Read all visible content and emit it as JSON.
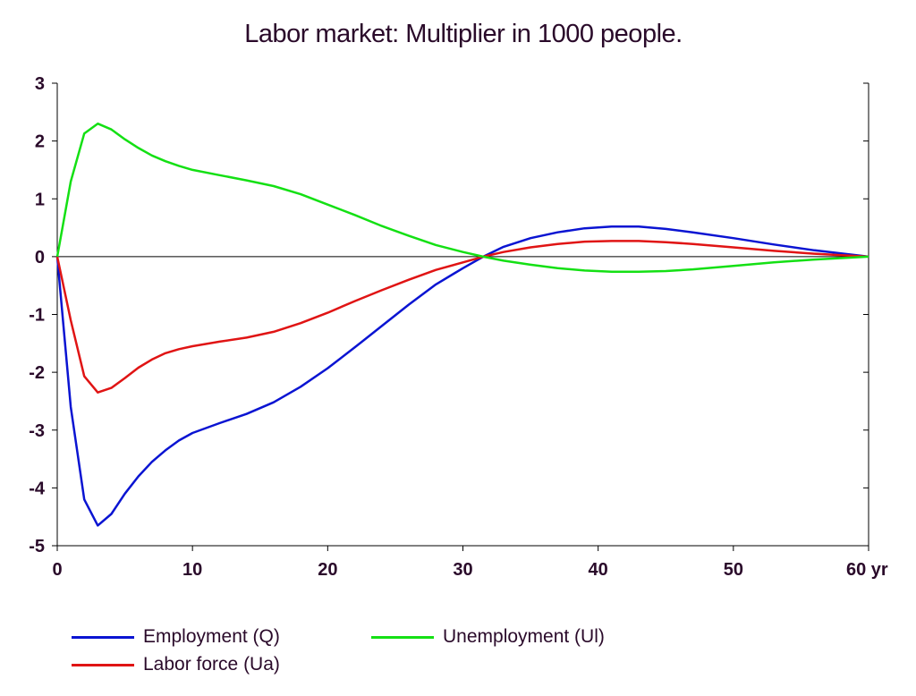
{
  "chart_data": {
    "type": "line",
    "title": "Labor market: Multiplier in 1000 people.",
    "xlabel": "",
    "ylabel": "",
    "xlim": [
      0,
      60
    ],
    "ylim": [
      -5,
      3
    ],
    "x_ticks": [
      0,
      10,
      20,
      30,
      40,
      50,
      60
    ],
    "x_tick_labels": [
      "0",
      "10",
      "20",
      "30",
      "40",
      "50",
      "60 yr"
    ],
    "y_ticks": [
      3,
      2,
      1,
      0,
      -1,
      -2,
      -3,
      -4,
      -5
    ],
    "y_tick_labels": [
      "3",
      "2",
      "1",
      "0",
      "-1",
      "-2",
      "-3",
      "-4",
      "-5"
    ],
    "zero_line": true,
    "grid": false,
    "legend_placement": "bottom",
    "series": [
      {
        "name": "Employment (Q)",
        "color": "#0a14d2",
        "points": [
          [
            0,
            0
          ],
          [
            1,
            -2.6
          ],
          [
            2,
            -4.2
          ],
          [
            3,
            -4.65
          ],
          [
            4,
            -4.45
          ],
          [
            5,
            -4.1
          ],
          [
            6,
            -3.8
          ],
          [
            7,
            -3.55
          ],
          [
            8,
            -3.35
          ],
          [
            9,
            -3.18
          ],
          [
            10,
            -3.05
          ],
          [
            12,
            -2.88
          ],
          [
            14,
            -2.72
          ],
          [
            16,
            -2.52
          ],
          [
            18,
            -2.25
          ],
          [
            20,
            -1.93
          ],
          [
            22,
            -1.57
          ],
          [
            24,
            -1.2
          ],
          [
            26,
            -0.83
          ],
          [
            28,
            -0.48
          ],
          [
            30,
            -0.2
          ],
          [
            31.5,
            0
          ],
          [
            33,
            0.17
          ],
          [
            35,
            0.32
          ],
          [
            37,
            0.42
          ],
          [
            39,
            0.49
          ],
          [
            41,
            0.52
          ],
          [
            43,
            0.52
          ],
          [
            45,
            0.48
          ],
          [
            47,
            0.42
          ],
          [
            50,
            0.32
          ],
          [
            53,
            0.21
          ],
          [
            56,
            0.11
          ],
          [
            60,
            0
          ]
        ]
      },
      {
        "name": "Labor force (Ua)",
        "color": "#e01414",
        "points": [
          [
            0,
            0
          ],
          [
            1,
            -1.1
          ],
          [
            2,
            -2.07
          ],
          [
            3,
            -2.35
          ],
          [
            4,
            -2.27
          ],
          [
            5,
            -2.1
          ],
          [
            6,
            -1.92
          ],
          [
            7,
            -1.78
          ],
          [
            8,
            -1.67
          ],
          [
            9,
            -1.6
          ],
          [
            10,
            -1.55
          ],
          [
            12,
            -1.47
          ],
          [
            14,
            -1.4
          ],
          [
            16,
            -1.3
          ],
          [
            18,
            -1.15
          ],
          [
            20,
            -0.97
          ],
          [
            22,
            -0.77
          ],
          [
            24,
            -0.58
          ],
          [
            26,
            -0.4
          ],
          [
            28,
            -0.23
          ],
          [
            30,
            -0.1
          ],
          [
            31.5,
            0
          ],
          [
            33,
            0.08
          ],
          [
            35,
            0.16
          ],
          [
            37,
            0.22
          ],
          [
            39,
            0.26
          ],
          [
            41,
            0.27
          ],
          [
            43,
            0.27
          ],
          [
            45,
            0.25
          ],
          [
            47,
            0.22
          ],
          [
            50,
            0.16
          ],
          [
            53,
            0.1
          ],
          [
            56,
            0.05
          ],
          [
            60,
            0
          ]
        ]
      },
      {
        "name": "Unemployment (Ul)",
        "color": "#14e014",
        "points": [
          [
            0,
            0
          ],
          [
            1,
            1.3
          ],
          [
            2,
            2.13
          ],
          [
            3,
            2.3
          ],
          [
            4,
            2.2
          ],
          [
            5,
            2.03
          ],
          [
            6,
            1.88
          ],
          [
            7,
            1.75
          ],
          [
            8,
            1.65
          ],
          [
            9,
            1.57
          ],
          [
            10,
            1.5
          ],
          [
            12,
            1.41
          ],
          [
            14,
            1.32
          ],
          [
            16,
            1.22
          ],
          [
            18,
            1.08
          ],
          [
            20,
            0.9
          ],
          [
            22,
            0.72
          ],
          [
            24,
            0.53
          ],
          [
            26,
            0.36
          ],
          [
            28,
            0.2
          ],
          [
            30,
            0.08
          ],
          [
            31.5,
            0
          ],
          [
            33,
            -0.07
          ],
          [
            35,
            -0.14
          ],
          [
            37,
            -0.2
          ],
          [
            39,
            -0.24
          ],
          [
            41,
            -0.26
          ],
          [
            43,
            -0.26
          ],
          [
            45,
            -0.25
          ],
          [
            47,
            -0.22
          ],
          [
            50,
            -0.16
          ],
          [
            53,
            -0.1
          ],
          [
            56,
            -0.05
          ],
          [
            60,
            0
          ]
        ]
      }
    ]
  }
}
